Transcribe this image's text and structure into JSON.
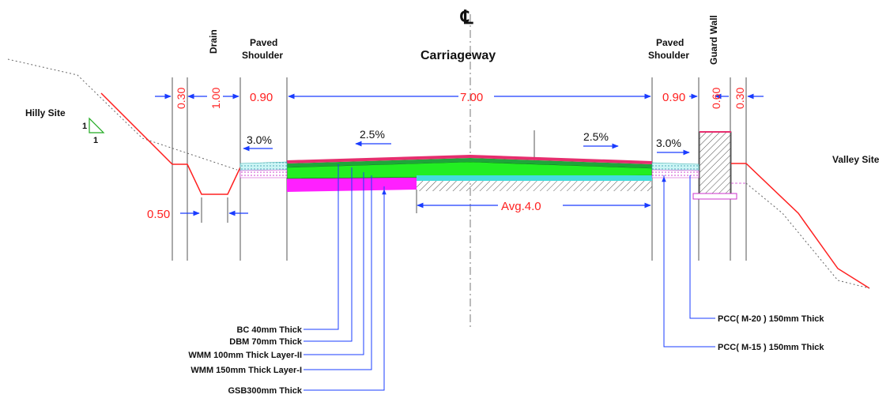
{
  "labels": {
    "hilly_site": "Hilly Site",
    "valley_site": "Valley Site",
    "drain": "Drain",
    "paved_shoulder_left_1": "Paved",
    "paved_shoulder_left_2": "Shoulder",
    "carriageway": "Carriageway",
    "paved_shoulder_right_1": "Paved",
    "paved_shoulder_right_2": "Shoulder",
    "guard_wall": "Guard Wall",
    "centerline_symbol": "℄"
  },
  "slope_marker": {
    "rise": "1",
    "run": "1",
    "color": "#22aa22"
  },
  "dimensions": {
    "d030_left": "0.30",
    "d100": "1.00",
    "d090_left": "0.90",
    "d700": "7.00",
    "d090_right": "0.90",
    "d060": "0.60",
    "d030_right": "0.30",
    "d050": "0.50",
    "avg": "Avg.4.0"
  },
  "slopes": {
    "left_shoulder": "3.0%",
    "left_carriageway": "2.5%",
    "right_carriageway": "2.5%",
    "right_shoulder": "3.0%"
  },
  "layers": {
    "bc": "BC 40mm Thick",
    "dbm": "DBM 70mm Thick",
    "wmm2": "WMM 100mm Thick Layer-II",
    "wmm1": "WMM 150mm Thick Layer-I",
    "gsb": "GSB300mm Thick",
    "pcc20": "PCC( M-20 ) 150mm Thick",
    "pcc15": "PCC( M-15 ) 150mm Thick"
  },
  "colors": {
    "dimension_text": "#ff2020",
    "dimension_line": "#1a3cff",
    "ground_line": "#ff2020",
    "bc_layer": "#e62e6e",
    "wmm_layer": "#22ee22",
    "gsb_layer": "#ff20ff",
    "shoulder_layer": "#88eeee",
    "pcc_layer": "#ff88ff"
  }
}
